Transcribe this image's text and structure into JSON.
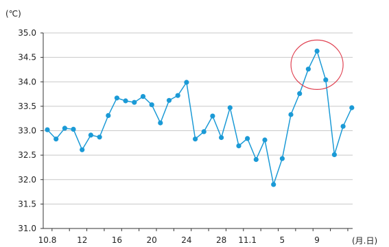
{
  "chart_data": {
    "type": "line",
    "y_unit": "(℃)",
    "x_unit": "(月.日)",
    "ylim": [
      31.0,
      35.0
    ],
    "yticks": [
      "35.0",
      "34.5",
      "34.0",
      "33.5",
      "33.0",
      "32.5",
      "32.0",
      "31.5",
      "31.0"
    ],
    "x_tick_labels": [
      {
        "index": 0,
        "label": "10.8"
      },
      {
        "index": 4,
        "label": "12"
      },
      {
        "index": 8,
        "label": "16"
      },
      {
        "index": 12,
        "label": "20"
      },
      {
        "index": 16,
        "label": "24"
      },
      {
        "index": 20,
        "label": "28"
      },
      {
        "index": 23,
        "label": "11.1"
      },
      {
        "index": 27,
        "label": "5"
      },
      {
        "index": 31,
        "label": "9"
      }
    ],
    "grid": true,
    "line_color": "#1b9ad6",
    "highlight_color": "#e04050",
    "highlight_indices": [
      30,
      31,
      32
    ],
    "series": [
      {
        "values": [
          33.02,
          32.83,
          33.05,
          33.03,
          32.61,
          32.91,
          32.87,
          33.31,
          33.67,
          33.61,
          33.58,
          33.7,
          33.53,
          33.16,
          33.62,
          33.72,
          33.99,
          32.83,
          32.98,
          33.3,
          32.86,
          33.47,
          32.69,
          32.84,
          32.41,
          32.81,
          31.9,
          32.43,
          33.33,
          33.76,
          34.26,
          34.63,
          34.04,
          32.51,
          33.09,
          33.47
        ]
      }
    ]
  }
}
